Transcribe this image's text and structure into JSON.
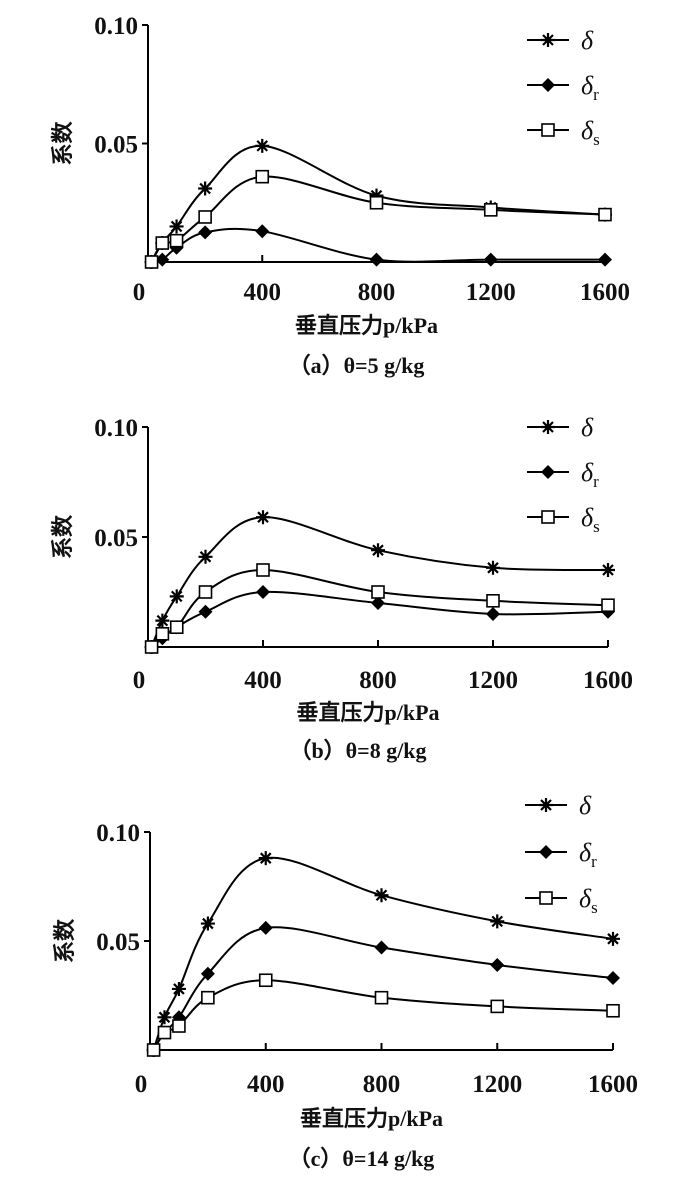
{
  "chart_data": [
    {
      "type": "line",
      "caption": "（a）θ=5 g/kg",
      "xlabel": "垂直压力p/kPa",
      "ylabel": "系数",
      "xlim": [
        0,
        1600
      ],
      "ylim": [
        0,
        0.1
      ],
      "xticks": [
        "0",
        "400",
        "800",
        "1200",
        "1600"
      ],
      "yticks": [
        "0.05",
        "0.10"
      ],
      "legend_position": "top-right",
      "x": [
        12.5,
        50,
        100,
        200,
        400,
        800,
        1200,
        1600
      ],
      "series": [
        {
          "name": "δ",
          "sub": "",
          "marker": "asterisk",
          "values": [
            0,
            0.008,
            0.015,
            0.031,
            0.049,
            0.028,
            0.023,
            0.02
          ]
        },
        {
          "name": "δ",
          "sub": "r",
          "marker": "diamond",
          "values": [
            0,
            0.001,
            0.006,
            0.0125,
            0.013,
            0.001,
            0.001,
            0.001
          ]
        },
        {
          "name": "δ",
          "sub": "s",
          "marker": "square",
          "values": [
            0,
            0.008,
            0.009,
            0.019,
            0.036,
            0.025,
            0.022,
            0.02
          ]
        }
      ]
    },
    {
      "type": "line",
      "caption": "（b）θ=8 g/kg",
      "xlabel": "垂直压力p/kPa",
      "ylabel": "系数",
      "xlim": [
        0,
        1600
      ],
      "ylim": [
        0,
        0.1
      ],
      "xticks": [
        "0",
        "400",
        "800",
        "1200",
        "1600"
      ],
      "yticks": [
        "0.05",
        "0.10"
      ],
      "legend_position": "top-right",
      "x": [
        12.5,
        50,
        100,
        200,
        400,
        800,
        1200,
        1600
      ],
      "series": [
        {
          "name": "δ",
          "sub": "",
          "marker": "asterisk",
          "values": [
            0,
            0.012,
            0.023,
            0.041,
            0.059,
            0.044,
            0.036,
            0.035
          ]
        },
        {
          "name": "δ",
          "sub": "r",
          "marker": "diamond",
          "values": [
            0,
            0.004,
            0.009,
            0.016,
            0.025,
            0.02,
            0.015,
            0.016
          ]
        },
        {
          "name": "δ",
          "sub": "s",
          "marker": "square",
          "values": [
            0,
            0.006,
            0.009,
            0.025,
            0.035,
            0.025,
            0.021,
            0.019
          ]
        }
      ]
    },
    {
      "type": "line",
      "caption": "（c）θ=14 g/kg",
      "xlabel": "垂直压力p/kPa",
      "ylabel": "系数",
      "xlim": [
        0,
        1600
      ],
      "ylim": [
        0,
        0.1
      ],
      "xticks": [
        "0",
        "400",
        "800",
        "1200",
        "1600"
      ],
      "yticks": [
        "0.05",
        "0.10"
      ],
      "legend_position": "top-right",
      "x": [
        12.5,
        50,
        100,
        200,
        400,
        800,
        1200,
        1600
      ],
      "series": [
        {
          "name": "δ",
          "sub": "",
          "marker": "asterisk",
          "values": [
            0,
            0.015,
            0.028,
            0.058,
            0.088,
            0.071,
            0.059,
            0.051
          ]
        },
        {
          "name": "δ",
          "sub": "r",
          "marker": "diamond",
          "values": [
            0,
            0.008,
            0.015,
            0.035,
            0.056,
            0.047,
            0.039,
            0.033
          ]
        },
        {
          "name": "δ",
          "sub": "s",
          "marker": "square",
          "values": [
            0,
            0.008,
            0.011,
            0.024,
            0.032,
            0.024,
            0.02,
            0.018
          ]
        }
      ]
    }
  ]
}
